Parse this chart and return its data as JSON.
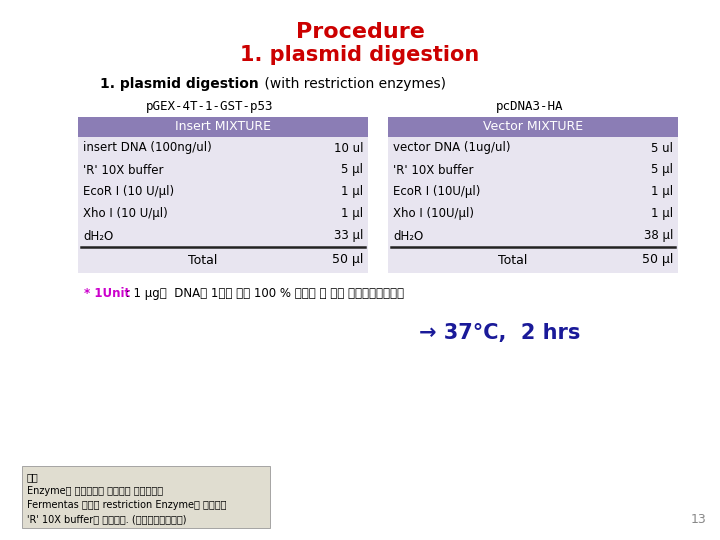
{
  "title": "Procedure",
  "subtitle": "1. plasmid digestion",
  "subtitle3_bold": "1. plasmid digestion",
  "subtitle3_normal": " (with restriction enzymes)",
  "bg_color": "#ffffff",
  "title_color": "#cc0000",
  "subtitle_color": "#cc0000",
  "left_label": "pGEX-4T-1-GST-p53",
  "right_label": "pcDNA3-HA",
  "insert_header": "Insert MIXTURE",
  "vector_header": "Vector MIXTURE",
  "header_bg": "#8b7db5",
  "header_text": "#ffffff",
  "table_bg": "#e8e5f0",
  "insert_rows": [
    [
      "insert DNA (100ng/ul)",
      "10 ul"
    ],
    [
      "'R' 10X buffer",
      "5 μl"
    ],
    [
      "EcoR I (10 U/μl)",
      "1 μl"
    ],
    [
      "Xho I (10 U/μl)",
      "1 μl"
    ],
    [
      "dH₂O",
      "33 μl"
    ]
  ],
  "vector_rows": [
    [
      "vector DNA (1ug/ul)",
      "5 ul"
    ],
    [
      "'R' 10X buffer",
      "5 μl"
    ],
    [
      "EcoR I (10U/μl)",
      "1 μl"
    ],
    [
      "Xho I (10U/μl)",
      "1 μl"
    ],
    [
      "dH₂O",
      "38 μl"
    ]
  ],
  "total_label": "Total",
  "insert_total": "50 μl",
  "vector_total": "50 μl",
  "footnote_star": "* 1Unit",
  "footnote_rest": " : 1 μg의  DNA를 1시간 동안 100 % 절단할 수 있는 제한효소활성단위",
  "arrow_text": "→ 37°C,  2 hrs",
  "arrow_color": "#1a1a99",
  "ref_title": "참조",
  "ref_line1": "Enzyme은 상업적으로 구입하여 사용하는데",
  "ref_line2": "Fermentas 회사의 restriction Enzyme을 사용하고",
  "ref_line3": "'R' 10X buffer를 사용한다. (다음슬라이드참조)",
  "footnote_color": "#cc00cc",
  "page_num": "13"
}
